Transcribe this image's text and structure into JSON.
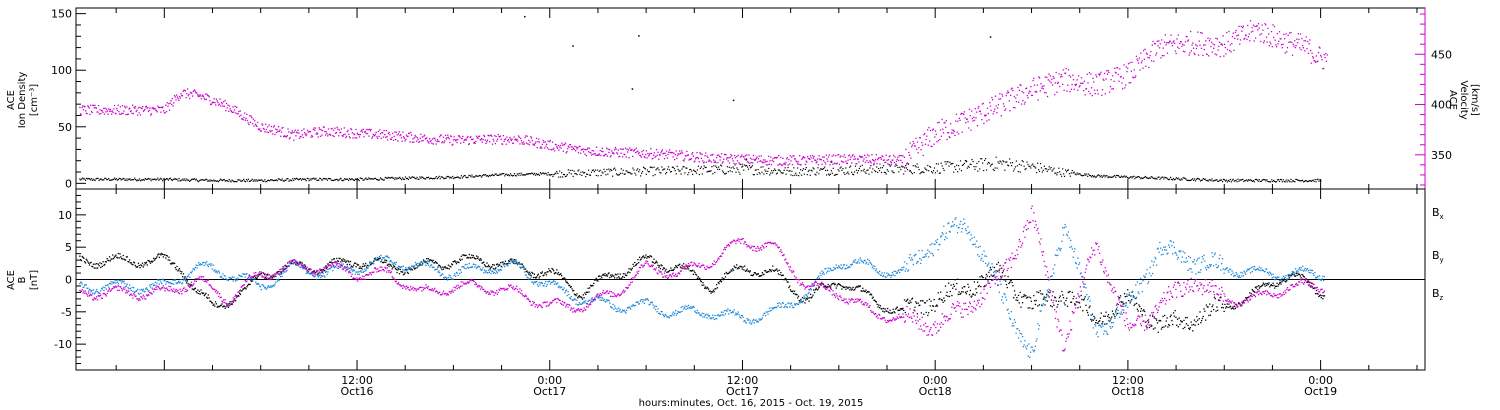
{
  "colors": {
    "black": "#000000",
    "magenta": "#cc00cc",
    "blue": "#1a86d9"
  },
  "xaxis": {
    "title": "hours:minutes, Oct. 16, 2015 - Oct. 19, 2015",
    "range_hours": [
      -5.5,
      78.5
    ],
    "ticks": [
      {
        "hour": 12,
        "time": "12:00",
        "date": "Oct16"
      },
      {
        "hour": 24,
        "time": "0:00",
        "date": "Oct17"
      },
      {
        "hour": 36,
        "time": "12:00",
        "date": "Oct17"
      },
      {
        "hour": 48,
        "time": "0:00",
        "date": "Oct18"
      },
      {
        "hour": 60,
        "time": "12:00",
        "date": "Oct18"
      },
      {
        "hour": 72,
        "time": "0:00",
        "date": "Oct19"
      }
    ]
  },
  "chart_data": [
    {
      "type": "scatter",
      "title": "",
      "ylabel_left": [
        "ACE",
        "Ion Density",
        "[cm⁻³]"
      ],
      "ylabel_right": [
        "ACE",
        "Velocity",
        "[km/s]"
      ],
      "ylim_left": [
        -5,
        155
      ],
      "ylim_right": [
        316,
        496
      ],
      "yticks_left": [
        0,
        50,
        100,
        150
      ],
      "yticks_right": [
        350,
        400,
        450
      ],
      "series": [
        {
          "axis": "left",
          "color": "#000000",
          "x": [
            0,
            3,
            6,
            9,
            12,
            15,
            18,
            21,
            24,
            27,
            30,
            33,
            36,
            39,
            42,
            45,
            48,
            50,
            52,
            54,
            56,
            58,
            60,
            62,
            64,
            66,
            68,
            70,
            72
          ],
          "y": [
            4,
            3,
            3,
            4,
            4,
            5,
            6,
            8,
            9,
            10,
            11,
            12,
            13,
            11,
            12,
            13,
            14,
            16,
            18,
            15,
            10,
            7,
            6,
            5,
            4,
            3,
            3,
            3,
            3
          ]
        },
        {
          "axis": "right",
          "color": "#cc00cc",
          "x": [
            0,
            1,
            2,
            3,
            4,
            5,
            6,
            7,
            8,
            9,
            10,
            12,
            14,
            16,
            18,
            20,
            22,
            24,
            26,
            28,
            30,
            32,
            34,
            36,
            38,
            40,
            42,
            44,
            46,
            48,
            50,
            52,
            54,
            56,
            58,
            60,
            62,
            64,
            66,
            68,
            70,
            71,
            72
          ],
          "y": [
            395,
            412,
            410,
            405,
            398,
            388,
            378,
            375,
            370,
            372,
            374,
            372,
            370,
            367,
            365,
            366,
            366,
            360,
            355,
            353,
            352,
            350,
            347,
            346,
            345,
            345,
            346,
            346,
            345,
            372,
            385,
            400,
            415,
            425,
            420,
            430,
            458,
            462,
            460,
            475,
            462,
            458,
            446
          ]
        },
        {
          "axis": "left",
          "color": "#000000",
          "x": [
            22.4,
            25.4,
            29.1,
            29.5,
            35.4,
            36.2,
            40.5,
            41.5,
            49.9,
            51.4
          ],
          "y": [
            148,
            122,
            84,
            131,
            74,
            22,
            21,
            20,
            20,
            130
          ]
        }
      ]
    },
    {
      "type": "scatter",
      "title": "",
      "ylabel_left": [
        "ACE",
        "B",
        "[nT]"
      ],
      "ylim": [
        -14,
        14
      ],
      "yticks": [
        -10,
        -5,
        0,
        5,
        10
      ],
      "legend": [
        {
          "label": "B",
          "sub": "x",
          "color": "#000000"
        },
        {
          "label": "B",
          "sub": "y",
          "color": "#1a86d9"
        },
        {
          "label": "B",
          "sub": "z",
          "color": "#cc00cc"
        }
      ],
      "series": [
        {
          "name": "Bx",
          "color": "#000000",
          "x": [
            0,
            1,
            2,
            3,
            4,
            5,
            6,
            8,
            10,
            12,
            14,
            16,
            18,
            20,
            22,
            24,
            26,
            28,
            30,
            32,
            34,
            36,
            38,
            40,
            42,
            44,
            46,
            48,
            50,
            52,
            54,
            56,
            58,
            60,
            62,
            64,
            66,
            68,
            70,
            72
          ],
          "y": [
            3,
            2,
            -2,
            -4,
            -3,
            -2,
            1,
            2,
            2,
            3,
            2,
            2,
            3,
            3,
            2,
            1,
            -2,
            1,
            3,
            2,
            -1,
            2,
            1,
            -3,
            0,
            -3,
            -5,
            -3,
            -1,
            1,
            -4,
            -2,
            -6,
            -3,
            -7,
            -6,
            -4,
            -2,
            1,
            -2
          ]
        },
        {
          "name": "By",
          "color": "#1a86d9",
          "x": [
            0,
            2,
            4,
            6,
            8,
            10,
            12,
            14,
            16,
            18,
            20,
            22,
            24,
            26,
            28,
            30,
            32,
            34,
            36,
            38,
            40,
            42,
            44,
            46,
            48,
            50,
            52,
            54,
            56,
            58,
            60,
            62,
            64,
            66,
            68,
            70,
            72
          ],
          "y": [
            -1,
            2,
            1,
            -1,
            2,
            1,
            2,
            3,
            2,
            1,
            2,
            2,
            -1,
            -3,
            -4,
            -4,
            -5,
            -5,
            -6,
            -5,
            -2,
            3,
            2,
            1,
            6,
            9,
            -2,
            -12,
            9,
            -8,
            -4,
            5,
            3,
            2,
            1,
            1,
            1
          ]
        },
        {
          "name": "Bz",
          "color": "#cc00cc",
          "x": [
            0,
            2,
            4,
            6,
            8,
            10,
            12,
            14,
            16,
            18,
            20,
            22,
            24,
            26,
            28,
            30,
            32,
            34,
            36,
            38,
            40,
            42,
            44,
            46,
            48,
            50,
            52,
            54,
            56,
            58,
            60,
            62,
            64,
            66,
            68,
            70,
            72
          ],
          "y": [
            -2,
            0,
            -3,
            1,
            2,
            2,
            1,
            1,
            -2,
            -1,
            -1,
            -2,
            -4,
            -4,
            -2,
            2,
            1,
            3,
            6,
            5,
            -1,
            -2,
            -5,
            -6,
            -7,
            -4,
            0,
            10,
            -10,
            6,
            -8,
            -4,
            0,
            -3,
            -3,
            -1,
            -1
          ]
        }
      ]
    }
  ]
}
